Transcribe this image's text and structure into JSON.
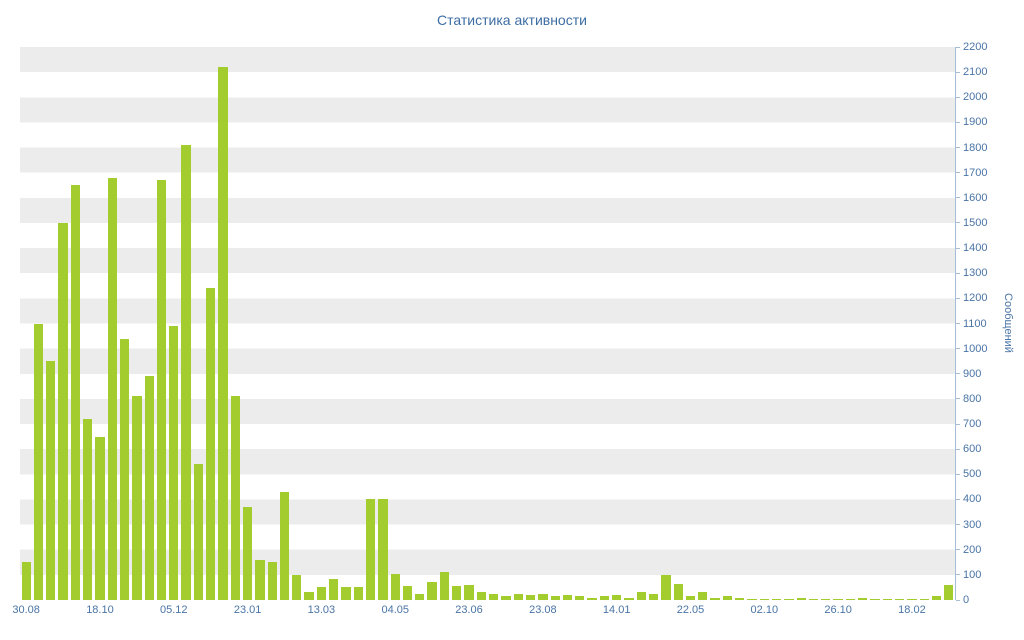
{
  "chart_data": {
    "type": "bar",
    "title": "Статистика активности",
    "xlabel": "",
    "ylabel": "Сообщений",
    "ylim": [
      0,
      2200
    ],
    "ytick_step": 100,
    "y_ticks": [
      0,
      100,
      200,
      300,
      400,
      500,
      600,
      700,
      800,
      900,
      1000,
      1100,
      1200,
      1300,
      1400,
      1500,
      1600,
      1700,
      1800,
      1900,
      2000,
      2100,
      2200
    ],
    "x_tick_labels": [
      "30.08",
      "18.10",
      "05.12",
      "23.01",
      "13.03",
      "04.05",
      "23.06",
      "23.08",
      "14.01",
      "22.05",
      "02.10",
      "26.10",
      "18.02"
    ],
    "label_every_n_bars": 6,
    "legend": "none",
    "grid": "striped-bands",
    "values": [
      150,
      1100,
      950,
      1500,
      1650,
      720,
      650,
      1680,
      1040,
      810,
      890,
      1670,
      1090,
      1810,
      540,
      1240,
      2120,
      810,
      370,
      160,
      150,
      430,
      100,
      30,
      50,
      85,
      50,
      50,
      400,
      400,
      105,
      55,
      25,
      70,
      110,
      55,
      60,
      30,
      25,
      15,
      25,
      20,
      25,
      15,
      20,
      15,
      10,
      15,
      20,
      10,
      30,
      25,
      100,
      65,
      15,
      30,
      10,
      15,
      10,
      5,
      5,
      5,
      5,
      10,
      5,
      5,
      5,
      5,
      10,
      5,
      5,
      5,
      5,
      5,
      15,
      60
    ]
  },
  "colors": {
    "bar": "#a3cd2e",
    "stripe": "#ececec",
    "axis_text": "#4a74a6",
    "title_text": "#3d6da3",
    "axis_line": "#a7bdd4",
    "background": "#ffffff"
  }
}
